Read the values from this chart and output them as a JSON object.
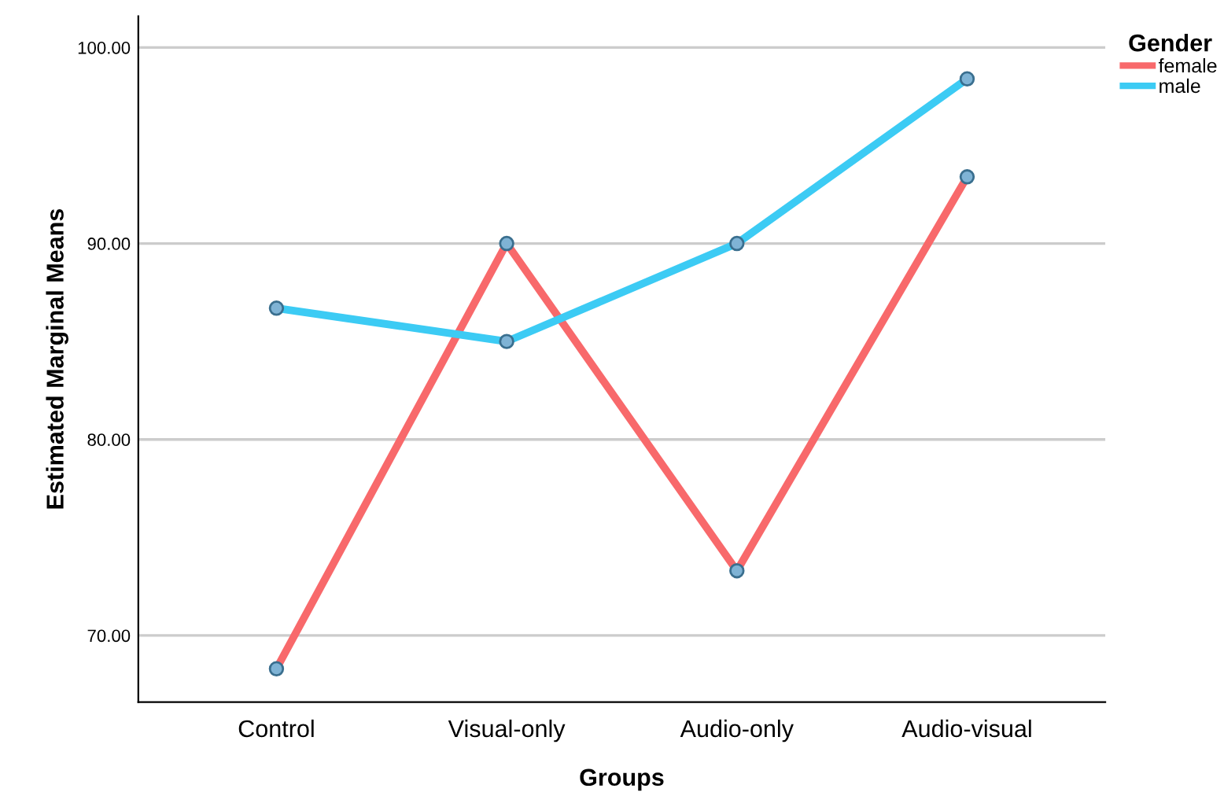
{
  "chart_data": {
    "type": "line",
    "xlabel": "Groups",
    "ylabel": "Estimated Marginal Means",
    "legend_title": "Gender",
    "categories": [
      "Control",
      "Visual-only",
      "Audio-only",
      "Audio-visual"
    ],
    "series": [
      {
        "name": "female",
        "color": "#f8696b",
        "values": [
          68.3,
          90.0,
          73.3,
          93.4
        ]
      },
      {
        "name": "male",
        "color": "#3ccbf4",
        "values": [
          86.7,
          85.0,
          90.0,
          98.4
        ]
      }
    ],
    "ylim": [
      66.6,
      101.6
    ],
    "yticks": [
      {
        "value": 70,
        "label": "70.00"
      },
      {
        "value": 80,
        "label": "80.00"
      },
      {
        "value": 90,
        "label": "90.00"
      },
      {
        "value": 100,
        "label": "100.00"
      }
    ],
    "grid": "y",
    "legend": "top right",
    "marker": "circle",
    "line_style": "solid"
  }
}
